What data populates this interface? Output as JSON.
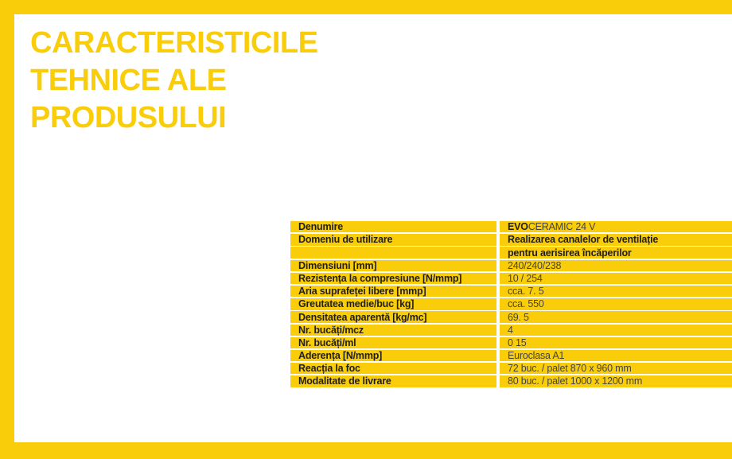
{
  "title": {
    "lines": [
      "CARACTERISTICILE",
      "TEHNICE ALE",
      "PRODUSULUI"
    ]
  },
  "colors": {
    "brand_yellow": "#facd0a",
    "label_text": "#201f1b",
    "value_text": "#45443f",
    "background": "#ffffff"
  },
  "spec_table": {
    "rows": [
      {
        "label": "Denumire",
        "value": "EVOCERAMIC 24 V",
        "bold_prefix": "EVO",
        "value_rest": "CERAMIC 24 V",
        "value_style": "mixed"
      },
      {
        "label": "Domeniu de utilizare",
        "value": "Realizarea canalelor de ventilație",
        "value_style": "bold"
      },
      {
        "label": "",
        "value": "pentru aerisirea încăperilor",
        "value_style": "bold"
      },
      {
        "label": "Dimensiuni [mm]",
        "value": "240/240/238",
        "value_style": "regular"
      },
      {
        "label": "Rezistența la compresiune [N/mmp]",
        "value": "10 / 254",
        "value_style": "regular"
      },
      {
        "label": "Aria suprafeței libere [mmp]",
        "value": "cca. 7. 5",
        "value_style": "regular"
      },
      {
        "label": "Greutatea medie/buc [kg]",
        "value": "cca. 550",
        "value_style": "regular"
      },
      {
        "label": "Densitatea aparentă [kg/mc]",
        "value": "69. 5",
        "value_style": "regular"
      },
      {
        "label": "Nr. bucăți/mcz",
        "value": "4",
        "value_style": "regular"
      },
      {
        "label": "Nr. bucăți/ml",
        "value": "0 15",
        "value_style": "regular"
      },
      {
        "label": "Aderența [N/mmp]",
        "value": "Euroclasa A1",
        "value_style": "regular"
      },
      {
        "label": "Reacția la foc",
        "value": "72 buc. / palet 870 x 960 mm",
        "value_style": "regular"
      },
      {
        "label": "Modalitate de livrare",
        "value": "80 buc. / palet 1000 x 1200 mm",
        "value_style": "regular"
      }
    ]
  }
}
